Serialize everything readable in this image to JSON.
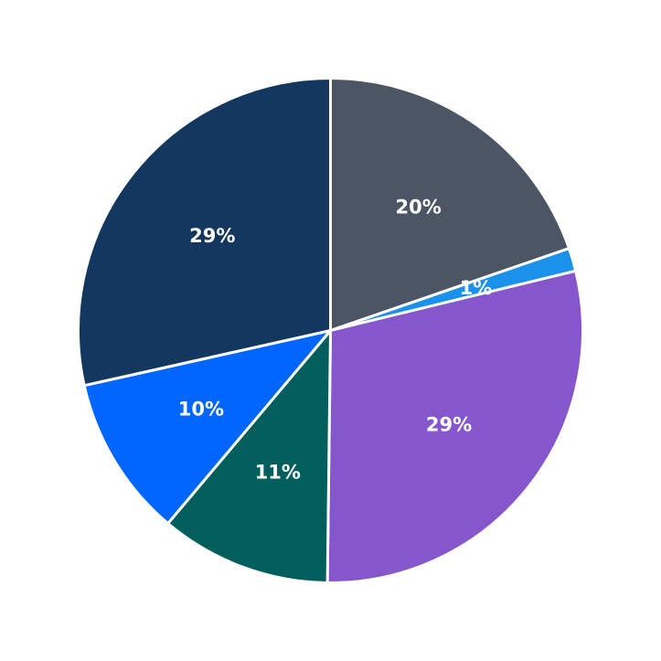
{
  "chart_data": {
    "type": "pie",
    "start_angle_deg": 90,
    "direction": "clockwise",
    "legend": "none",
    "slices": [
      {
        "label": "20%",
        "value": 20.0,
        "color": "#4b5563"
      },
      {
        "label": "1%",
        "value": 1.5,
        "color": "#1a91eb"
      },
      {
        "label": "29%",
        "value": 29.4,
        "color": "#8656cc"
      },
      {
        "label": "11%",
        "value": 11.1,
        "color": "#005f5c"
      },
      {
        "label": "10%",
        "value": 10.5,
        "color": "#0066ff"
      },
      {
        "label": "29%",
        "value": 28.9,
        "color": "#14375f"
      }
    ]
  }
}
